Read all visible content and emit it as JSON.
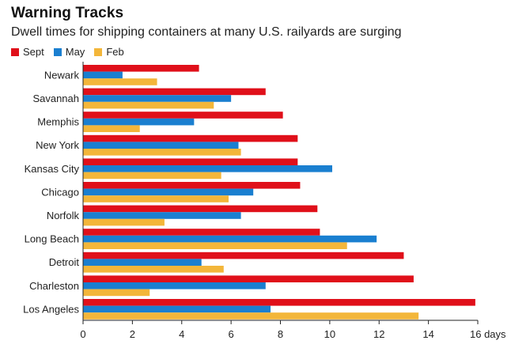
{
  "chart_data": {
    "type": "bar",
    "orientation": "horizontal",
    "title": "Warning Tracks",
    "subtitle": "Dwell times for shipping containers at many U.S. railyards are surging",
    "x_unit": "days",
    "xlim": [
      0,
      16
    ],
    "x_ticks": [
      0,
      2,
      4,
      6,
      8,
      10,
      12,
      14,
      16
    ],
    "categories": [
      "Newark",
      "Savannah",
      "Memphis",
      "New York",
      "Kansas City",
      "Chicago",
      "Norfolk",
      "Long Beach",
      "Detroit",
      "Charleston",
      "Los Angeles"
    ],
    "series": [
      {
        "name": "Sept",
        "color": "#e0101a",
        "values": [
          4.7,
          7.4,
          8.1,
          8.7,
          8.7,
          8.8,
          9.5,
          9.6,
          13.0,
          13.4,
          15.9
        ]
      },
      {
        "name": "May",
        "color": "#1a7fd0",
        "values": [
          1.6,
          6.0,
          4.5,
          6.3,
          10.1,
          6.9,
          6.4,
          11.9,
          4.8,
          7.4,
          7.6
        ]
      },
      {
        "name": "Feb",
        "color": "#f3b63a",
        "values": [
          3.0,
          5.3,
          2.3,
          6.4,
          5.6,
          5.9,
          3.3,
          10.7,
          5.7,
          2.7,
          13.6
        ]
      }
    ],
    "legend_position": "top-left",
    "grid": false
  }
}
